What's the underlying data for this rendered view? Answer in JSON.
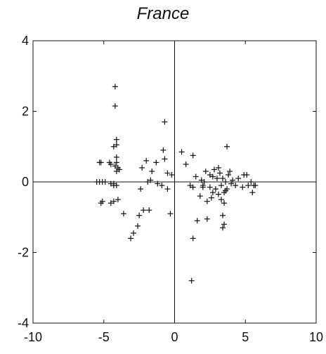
{
  "chart_data": {
    "type": "scatter",
    "title": "France",
    "xlabel": "",
    "ylabel": "",
    "xlim": [
      -10,
      10
    ],
    "ylim": [
      -4,
      4
    ],
    "x_ticks": [
      -10,
      -5,
      0,
      5,
      10
    ],
    "y_ticks": [
      -4,
      -2,
      0,
      2,
      4
    ],
    "x_tick_labels": [
      "-10",
      "-5",
      "0",
      "5",
      "10"
    ],
    "y_tick_labels": [
      "-4",
      "-2",
      "0",
      "2",
      "4"
    ],
    "grid": false,
    "reference_lines": {
      "x": 0,
      "y": 0
    },
    "marker": "+",
    "points": [
      [
        -4.2,
        2.7
      ],
      [
        -4.2,
        2.15
      ],
      [
        -4.1,
        1.2
      ],
      [
        -4.1,
        1.05
      ],
      [
        -4.3,
        1.0
      ],
      [
        -4.1,
        0.7
      ],
      [
        -4.1,
        0.55
      ],
      [
        -4.2,
        0.45
      ],
      [
        -4.0,
        0.4
      ],
      [
        -3.9,
        0.35
      ],
      [
        -4.1,
        0.3
      ],
      [
        -4.6,
        0.55
      ],
      [
        -5.3,
        0.55
      ],
      [
        -5.2,
        0.55
      ],
      [
        -4.5,
        0.5
      ],
      [
        -0.7,
        1.7
      ],
      [
        -5.5,
        0.0
      ],
      [
        -5.3,
        0.0
      ],
      [
        -5.1,
        0.0
      ],
      [
        -4.9,
        0.0
      ],
      [
        -4.5,
        -0.05
      ],
      [
        -4.3,
        -0.05
      ],
      [
        -4.1,
        -0.1
      ],
      [
        -4.3,
        -0.1
      ],
      [
        -5.2,
        -0.6
      ],
      [
        -5.1,
        -0.55
      ],
      [
        -4.5,
        -0.6
      ],
      [
        -4.3,
        -0.55
      ],
      [
        -4.0,
        -0.5
      ],
      [
        -3.6,
        -0.9
      ],
      [
        -2.3,
        0.4
      ],
      [
        -2.0,
        0.6
      ],
      [
        -1.6,
        0.3
      ],
      [
        -1.3,
        0.55
      ],
      [
        -0.8,
        0.9
      ],
      [
        -0.7,
        0.65
      ],
      [
        -0.5,
        0.25
      ],
      [
        -0.2,
        0.2
      ],
      [
        -2.4,
        -0.2
      ],
      [
        -1.9,
        0.0
      ],
      [
        -1.7,
        0.05
      ],
      [
        -1.2,
        -0.05
      ],
      [
        -0.9,
        -0.1
      ],
      [
        -0.5,
        -0.2
      ],
      [
        -2.2,
        -0.8
      ],
      [
        -1.8,
        -0.8
      ],
      [
        -2.5,
        -0.95
      ],
      [
        -2.6,
        -1.25
      ],
      [
        -2.9,
        -1.45
      ],
      [
        -3.1,
        -1.6
      ],
      [
        -0.3,
        -0.9
      ],
      [
        0.5,
        0.85
      ],
      [
        1.3,
        0.75
      ],
      [
        0.8,
        0.5
      ],
      [
        1.1,
        -0.1
      ],
      [
        1.3,
        -0.15
      ],
      [
        1.5,
        0.15
      ],
      [
        1.8,
        -0.4
      ],
      [
        2.0,
        -0.1
      ],
      [
        2.2,
        0.3
      ],
      [
        2.5,
        0.2
      ],
      [
        2.7,
        0.15
      ],
      [
        2.9,
        -0.2
      ],
      [
        3.0,
        0.1
      ],
      [
        3.2,
        0.25
      ],
      [
        3.4,
        0.1
      ],
      [
        3.5,
        -0.3
      ],
      [
        3.6,
        0.0
      ],
      [
        3.7,
        -0.2
      ],
      [
        3.8,
        0.2
      ],
      [
        3.9,
        0.3
      ],
      [
        3.7,
        1.0
      ],
      [
        2.3,
        -0.55
      ],
      [
        2.6,
        -0.45
      ],
      [
        3.1,
        -0.35
      ],
      [
        3.3,
        -0.5
      ],
      [
        3.5,
        -0.6
      ],
      [
        3.4,
        -0.95
      ],
      [
        3.5,
        -1.2
      ],
      [
        3.4,
        -1.3
      ],
      [
        1.6,
        -1.1
      ],
      [
        2.3,
        -1.05
      ],
      [
        1.3,
        -1.6
      ],
      [
        1.2,
        -2.8
      ],
      [
        4.0,
        -0.05
      ],
      [
        4.5,
        0.1
      ],
      [
        4.9,
        0.2
      ],
      [
        5.1,
        0.2
      ],
      [
        5.2,
        -0.1
      ],
      [
        5.4,
        0.0
      ],
      [
        5.6,
        -0.1
      ],
      [
        5.7,
        -0.1
      ],
      [
        5.5,
        -0.3
      ],
      [
        4.8,
        -0.15
      ],
      [
        4.3,
        -0.1
      ],
      [
        2.5,
        -0.15
      ],
      [
        2.0,
        -0.15
      ],
      [
        2.8,
        0.35
      ],
      [
        3.1,
        0.4
      ],
      [
        3.3,
        -0.1
      ],
      [
        2.1,
        0.0
      ],
      [
        1.9,
        0.05
      ],
      [
        4.1,
        0.05
      ],
      [
        3.6,
        -0.25
      ],
      [
        2.7,
        -0.3
      ]
    ]
  }
}
